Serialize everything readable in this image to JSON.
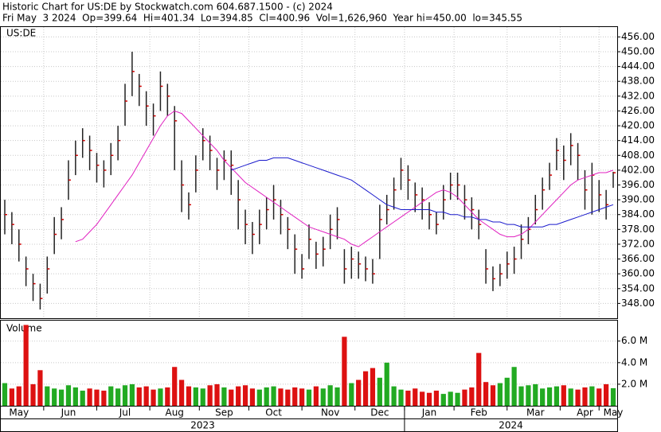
{
  "header": {
    "line1": "Historic Chart for US:DE by Stockwatch.com 604.687.1500 - (c) 2024",
    "line2": "Fri May  3 2024  Op=399.64  Hi=401.34  Lo=394.85  Cl=400.96  Vol=1,626,960  Year hi=450.00  lo=345.55"
  },
  "chart_data": [
    {
      "type": "ohlc",
      "title": "US:DE",
      "categories": [
        null,
        null,
        "May",
        null,
        null,
        null,
        null,
        null,
        null,
        "Jun",
        null,
        null,
        null,
        null,
        null,
        null,
        null,
        "Jul",
        null,
        null,
        null,
        null,
        null,
        null,
        "Aug",
        null,
        null,
        null,
        null,
        null,
        null,
        "Sep",
        null,
        null,
        null,
        null,
        null,
        null,
        "Oct",
        null,
        null,
        null,
        null,
        null,
        null,
        null,
        "Nov",
        null,
        null,
        null,
        null,
        null,
        null,
        "Dec",
        null,
        null,
        null,
        null,
        null,
        null,
        "Jan",
        null,
        null,
        null,
        null,
        null,
        null,
        "Feb",
        null,
        null,
        null,
        null,
        null,
        null,
        null,
        "Mar",
        null,
        null,
        null,
        null,
        null,
        null,
        "Apr",
        null,
        null,
        null,
        "May"
      ],
      "high": [
        390,
        385,
        378,
        367,
        360,
        356,
        367,
        383,
        387,
        406,
        414,
        419,
        416,
        409,
        406,
        413,
        420,
        437,
        450,
        441,
        434,
        429,
        442,
        437,
        428,
        406,
        393,
        408,
        419,
        416,
        407,
        410,
        410,
        398,
        386,
        381,
        386,
        391,
        396,
        390,
        383,
        376,
        368,
        380,
        373,
        375,
        384,
        387,
        370,
        371,
        369,
        367,
        366,
        388,
        392,
        399,
        407,
        404,
        397,
        395,
        389,
        385,
        396,
        401,
        401,
        396,
        391,
        386,
        370,
        363,
        364,
        369,
        371,
        380,
        383,
        392,
        399,
        405,
        415,
        412,
        417,
        413,
        402,
        405,
        398,
        394,
        401.34
      ],
      "low": [
        376,
        372,
        365,
        355,
        349,
        345.55,
        352,
        368,
        374,
        390,
        400,
        407,
        402,
        397,
        395,
        400,
        406,
        420,
        432,
        428,
        420,
        416,
        426,
        424,
        402,
        385,
        382,
        393,
        406,
        402,
        394,
        398,
        392,
        378,
        372,
        368,
        372,
        378,
        382,
        376,
        370,
        360,
        358,
        366,
        362,
        363,
        370,
        374,
        356,
        358,
        358,
        357,
        356,
        366,
        380,
        386,
        394,
        390,
        385,
        382,
        378,
        376,
        382,
        390,
        390,
        382,
        378,
        374,
        356,
        353,
        355,
        358,
        360,
        366,
        372,
        380,
        386,
        394,
        402,
        398,
        404,
        398,
        386,
        384,
        385,
        382,
        394.85
      ],
      "close": [
        384,
        380,
        372,
        362,
        356,
        350,
        362,
        376,
        382,
        398,
        408,
        414,
        410,
        404,
        402,
        408,
        414,
        430,
        442,
        436,
        428,
        424,
        436,
        432,
        422,
        396,
        388,
        402,
        414,
        410,
        402,
        406,
        404,
        390,
        380,
        376,
        380,
        386,
        390,
        384,
        378,
        370,
        362,
        374,
        368,
        370,
        378,
        382,
        362,
        366,
        364,
        362,
        360,
        382,
        386,
        394,
        402,
        398,
        392,
        390,
        384,
        380,
        390,
        396,
        396,
        390,
        386,
        380,
        362,
        358,
        360,
        364,
        366,
        374,
        378,
        386,
        394,
        400,
        410,
        406,
        412,
        408,
        394,
        400,
        392,
        388,
        400.96
      ],
      "bar_color": "#222222",
      "close_color": "#cc0000",
      "series": [
        {
          "color": "#e020c0",
          "values": [
            null,
            null,
            null,
            null,
            null,
            null,
            null,
            null,
            null,
            null,
            373,
            374,
            377,
            380,
            384,
            388,
            392,
            396,
            400,
            405,
            410,
            415,
            420,
            424,
            426,
            425,
            422,
            419,
            416,
            413,
            410,
            406,
            403,
            400,
            397,
            395,
            393,
            391,
            389,
            387,
            385,
            383,
            381,
            379,
            378,
            377,
            376,
            375,
            374,
            372,
            371,
            373,
            375,
            377,
            379,
            381,
            383,
            385,
            387,
            389,
            391,
            393,
            394,
            393,
            391,
            388,
            385,
            382,
            380,
            378,
            376,
            375,
            375,
            376,
            378,
            381,
            384,
            387,
            390,
            393,
            396,
            398,
            399,
            400,
            401,
            401,
            402
          ]
        },
        {
          "color": "#1a1acc",
          "values": [
            null,
            null,
            null,
            null,
            null,
            null,
            null,
            null,
            null,
            null,
            null,
            null,
            null,
            null,
            null,
            null,
            null,
            null,
            null,
            null,
            null,
            null,
            null,
            null,
            null,
            null,
            null,
            null,
            null,
            null,
            null,
            null,
            402,
            403,
            404,
            405,
            406,
            406,
            407,
            407,
            407,
            406,
            405,
            404,
            403,
            402,
            401,
            400,
            399,
            398,
            396,
            394,
            392,
            390,
            388,
            387,
            386,
            386,
            386,
            386,
            386,
            385,
            385,
            384,
            384,
            383,
            383,
            382,
            382,
            381,
            381,
            380,
            380,
            379,
            379,
            379,
            379,
            380,
            380,
            381,
            382,
            383,
            384,
            385,
            386,
            387,
            388
          ]
        }
      ],
      "ylim": [
        342,
        460
      ],
      "yticks": [
        {
          "value": 348,
          "label": "348.00"
        },
        {
          "value": 354,
          "label": "354.00"
        },
        {
          "value": 360,
          "label": "360.00"
        },
        {
          "value": 366,
          "label": "366.00"
        },
        {
          "value": 372,
          "label": "372.00"
        },
        {
          "value": 378,
          "label": "378.00"
        },
        {
          "value": 384,
          "label": "384.00"
        },
        {
          "value": 390,
          "label": "390.00"
        },
        {
          "value": 396,
          "label": "396.00"
        },
        {
          "value": 402,
          "label": "402.00"
        },
        {
          "value": 408,
          "label": "408.00"
        },
        {
          "value": 414,
          "label": "414.00"
        },
        {
          "value": 420,
          "label": "420.00"
        },
        {
          "value": 426,
          "label": "426.00"
        },
        {
          "value": 432,
          "label": "432.00"
        },
        {
          "value": 438,
          "label": "438.00"
        },
        {
          "value": 444,
          "label": "444.00"
        },
        {
          "value": 450,
          "label": "450.00"
        },
        {
          "value": 456,
          "label": "456.00"
        }
      ],
      "grid": true,
      "year_labels": [
        "2023",
        "2024"
      ]
    },
    {
      "type": "volume",
      "title": "Volume",
      "values": [
        2.1,
        1.6,
        1.8,
        7.5,
        2.0,
        3.3,
        1.8,
        1.6,
        1.5,
        1.9,
        1.7,
        1.4,
        1.6,
        1.5,
        1.4,
        1.8,
        1.6,
        1.9,
        2.0,
        1.7,
        1.8,
        1.5,
        1.6,
        1.7,
        3.6,
        2.4,
        1.8,
        1.7,
        1.6,
        1.9,
        2.0,
        1.7,
        1.5,
        1.8,
        1.9,
        1.6,
        1.5,
        1.7,
        1.8,
        1.6,
        1.5,
        1.7,
        1.6,
        1.5,
        1.8,
        1.6,
        1.9,
        1.7,
        6.4,
        2.1,
        2.4,
        3.2,
        3.5,
        2.6,
        4.0,
        1.8,
        1.5,
        1.4,
        1.6,
        1.3,
        1.2,
        1.4,
        1.1,
        1.3,
        1.2,
        1.5,
        1.7,
        4.9,
        2.2,
        1.9,
        2.1,
        2.6,
        3.6,
        1.8,
        1.9,
        2.0,
        1.6,
        1.7,
        1.8,
        1.9,
        1.6,
        1.5,
        1.7,
        1.8,
        1.6,
        2.0,
        1.63
      ],
      "up_color": "#22aa22",
      "down_color": "#dd1111",
      "ylim": [
        0,
        7.9
      ],
      "yticks": [
        {
          "value": 2,
          "label": "2.0 M"
        },
        {
          "value": 4,
          "label": "4.0 M"
        },
        {
          "value": 6,
          "label": "6.0 M"
        }
      ],
      "grid": true
    }
  ]
}
